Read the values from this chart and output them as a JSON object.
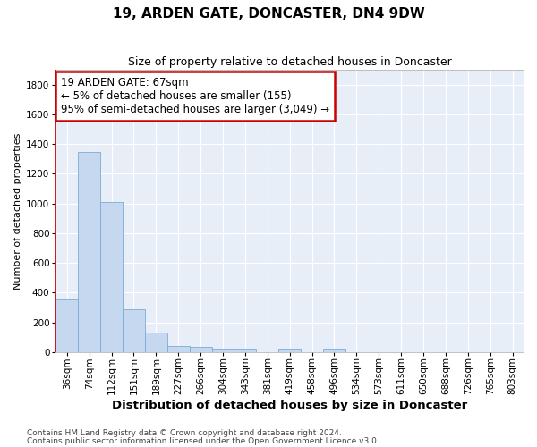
{
  "title": "19, ARDEN GATE, DONCASTER, DN4 9DW",
  "subtitle": "Size of property relative to detached houses in Doncaster",
  "xlabel": "Distribution of detached houses by size in Doncaster",
  "ylabel": "Number of detached properties",
  "footnote1": "Contains HM Land Registry data © Crown copyright and database right 2024.",
  "footnote2": "Contains public sector information licensed under the Open Government Licence v3.0.",
  "categories": [
    "36sqm",
    "74sqm",
    "112sqm",
    "151sqm",
    "189sqm",
    "227sqm",
    "266sqm",
    "304sqm",
    "343sqm",
    "381sqm",
    "419sqm",
    "458sqm",
    "496sqm",
    "534sqm",
    "573sqm",
    "611sqm",
    "650sqm",
    "688sqm",
    "726sqm",
    "765sqm",
    "803sqm"
  ],
  "values": [
    355,
    1345,
    1010,
    290,
    130,
    42,
    35,
    25,
    20,
    0,
    20,
    0,
    20,
    0,
    0,
    0,
    0,
    0,
    0,
    0,
    0
  ],
  "bar_color": "#c5d8f0",
  "bar_edge_color": "#7aadd4",
  "background_color": "#e8eef8",
  "grid_color": "#ffffff",
  "ylim_max": 1900,
  "yticks": [
    0,
    200,
    400,
    600,
    800,
    1000,
    1200,
    1400,
    1600,
    1800
  ],
  "annotation_line1": "19 ARDEN GATE: 67sqm",
  "annotation_line2": "← 5% of detached houses are smaller (155)",
  "annotation_line3": "95% of semi-detached houses are larger (3,049) →",
  "annotation_box_facecolor": "#ffffff",
  "annotation_box_edgecolor": "#cc0000",
  "red_line_color": "#cc0000",
  "title_fontsize": 11,
  "subtitle_fontsize": 9,
  "xlabel_fontsize": 9.5,
  "ylabel_fontsize": 8,
  "tick_fontsize": 7.5,
  "annotation_fontsize": 8.5,
  "footnote_fontsize": 6.5
}
